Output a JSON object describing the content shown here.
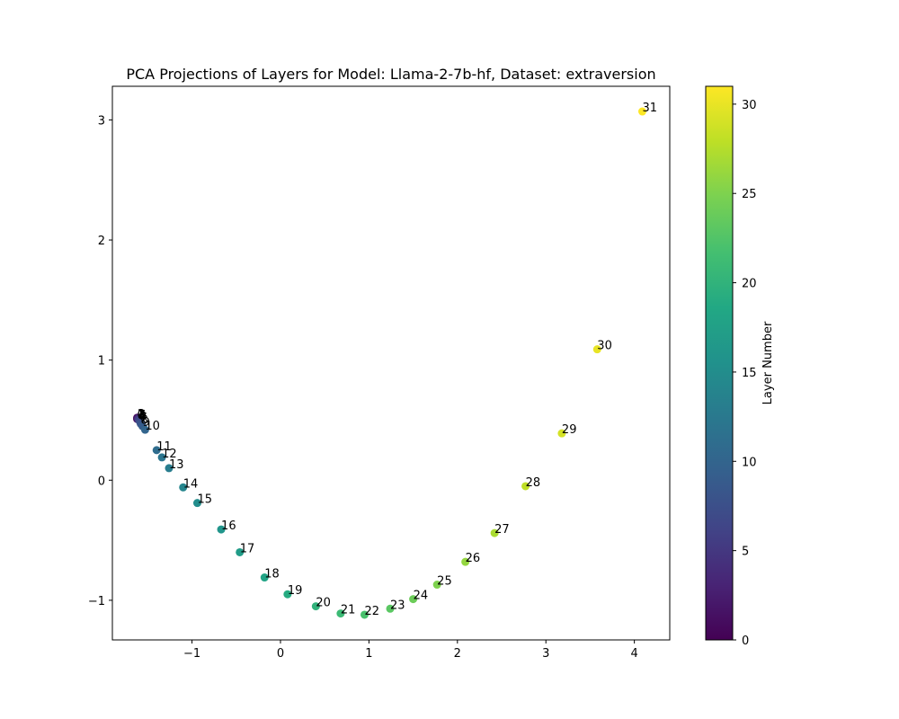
{
  "chart_data": {
    "type": "scatter",
    "title": "PCA Projections of Layers for Model: Llama-2-7b-hf, Dataset: extraversion",
    "xlabel": "",
    "ylabel": "",
    "xlim": [
      -1.9,
      4.4
    ],
    "ylim": [
      -1.33,
      3.28
    ],
    "x_ticks": [
      -1,
      0,
      1,
      2,
      3,
      4
    ],
    "x_tick_labels": [
      "−1",
      "0",
      "1",
      "2",
      "3",
      "4"
    ],
    "y_ticks": [
      -1,
      0,
      1,
      2,
      3
    ],
    "y_tick_labels": [
      "−1",
      "0",
      "1",
      "2",
      "3"
    ],
    "grid": false,
    "colormap": "viridis",
    "colorbar": {
      "label": "Layer Number",
      "range": [
        0,
        31
      ],
      "ticks": [
        0,
        5,
        10,
        15,
        20,
        25,
        30
      ],
      "tick_labels": [
        "0",
        "5",
        "10",
        "15",
        "20",
        "25",
        "30"
      ]
    },
    "points": [
      {
        "layer": 0,
        "label": "0",
        "x": -1.62,
        "y": 0.51
      },
      {
        "layer": 1,
        "label": "1",
        "x": -1.62,
        "y": 0.52
      },
      {
        "layer": 2,
        "label": "2",
        "x": -1.61,
        "y": 0.52
      },
      {
        "layer": 3,
        "label": "3",
        "x": -1.61,
        "y": 0.51
      },
      {
        "layer": 4,
        "label": "4",
        "x": -1.61,
        "y": 0.51
      },
      {
        "layer": 5,
        "label": "5",
        "x": -1.6,
        "y": 0.51
      },
      {
        "layer": 6,
        "label": "6",
        "x": -1.6,
        "y": 0.5
      },
      {
        "layer": 7,
        "label": "7",
        "x": -1.59,
        "y": 0.49
      },
      {
        "layer": 8,
        "label": "8",
        "x": -1.58,
        "y": 0.47
      },
      {
        "layer": 9,
        "label": "9",
        "x": -1.56,
        "y": 0.45
      },
      {
        "layer": 10,
        "label": "10",
        "x": -1.53,
        "y": 0.42
      },
      {
        "layer": 11,
        "label": "11",
        "x": -1.4,
        "y": 0.25
      },
      {
        "layer": 12,
        "label": "12",
        "x": -1.34,
        "y": 0.19
      },
      {
        "layer": 13,
        "label": "13",
        "x": -1.26,
        "y": 0.1
      },
      {
        "layer": 14,
        "label": "14",
        "x": -1.1,
        "y": -0.06
      },
      {
        "layer": 15,
        "label": "15",
        "x": -0.94,
        "y": -0.19
      },
      {
        "layer": 16,
        "label": "16",
        "x": -0.67,
        "y": -0.41
      },
      {
        "layer": 17,
        "label": "17",
        "x": -0.46,
        "y": -0.6
      },
      {
        "layer": 18,
        "label": "18",
        "x": -0.18,
        "y": -0.81
      },
      {
        "layer": 19,
        "label": "19",
        "x": 0.08,
        "y": -0.95
      },
      {
        "layer": 20,
        "label": "20",
        "x": 0.4,
        "y": -1.05
      },
      {
        "layer": 21,
        "label": "21",
        "x": 0.68,
        "y": -1.11
      },
      {
        "layer": 22,
        "label": "22",
        "x": 0.95,
        "y": -1.12
      },
      {
        "layer": 23,
        "label": "23",
        "x": 1.24,
        "y": -1.07
      },
      {
        "layer": 24,
        "label": "24",
        "x": 1.5,
        "y": -0.99
      },
      {
        "layer": 25,
        "label": "25",
        "x": 1.77,
        "y": -0.87
      },
      {
        "layer": 26,
        "label": "26",
        "x": 2.09,
        "y": -0.68
      },
      {
        "layer": 27,
        "label": "27",
        "x": 2.42,
        "y": -0.44
      },
      {
        "layer": 28,
        "label": "28",
        "x": 2.77,
        "y": -0.05
      },
      {
        "layer": 29,
        "label": "29",
        "x": 3.18,
        "y": 0.39
      },
      {
        "layer": 30,
        "label": "30",
        "x": 3.58,
        "y": 1.09
      },
      {
        "layer": 31,
        "label": "31",
        "x": 4.09,
        "y": 3.07
      }
    ]
  }
}
